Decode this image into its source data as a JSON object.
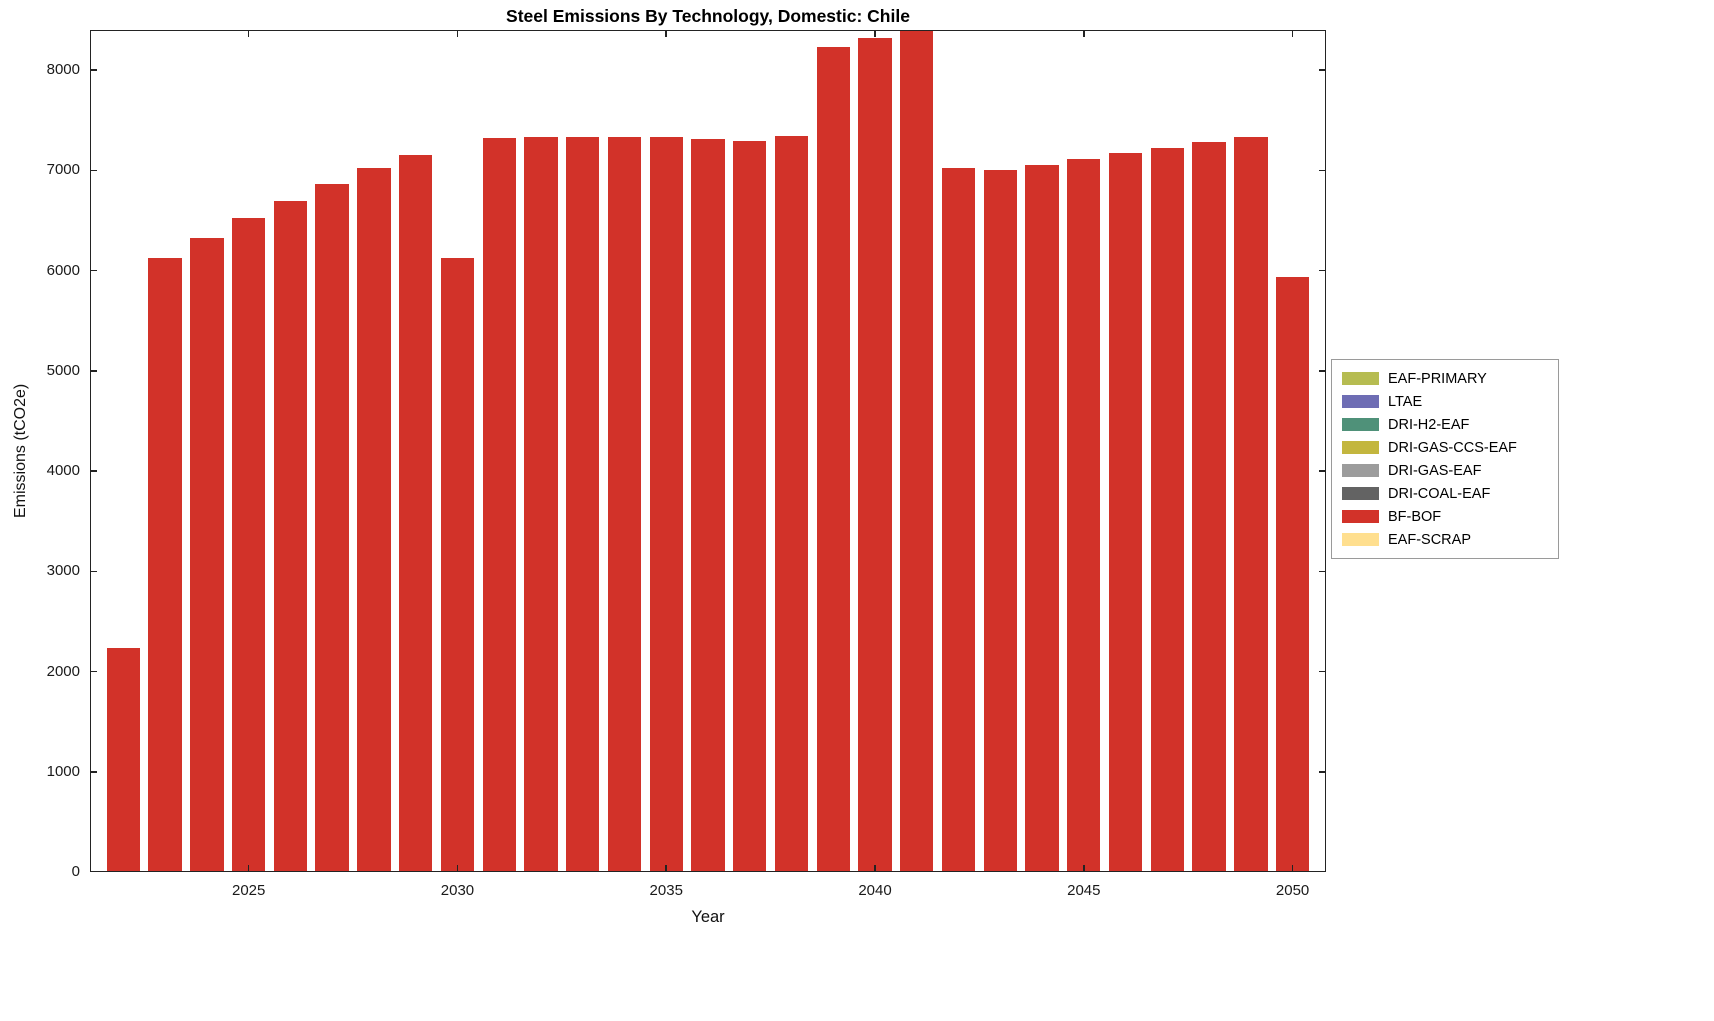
{
  "chart_data": {
    "type": "bar",
    "title": "Steel Emissions By Technology, Domestic: Chile",
    "xlabel": "Year",
    "ylabel": "Emissions (tCO2e)",
    "xlim": [
      2021.2,
      2050.8
    ],
    "ylim": [
      0,
      8400
    ],
    "yticks": [
      0,
      1000,
      2000,
      3000,
      4000,
      5000,
      6000,
      7000,
      8000
    ],
    "xticks": [
      2025,
      2030,
      2035,
      2040,
      2045,
      2050
    ],
    "grid": false,
    "bar_width": 0.8,
    "categories": [
      2022,
      2023,
      2024,
      2025,
      2026,
      2027,
      2028,
      2029,
      2030,
      2031,
      2032,
      2033,
      2034,
      2035,
      2036,
      2037,
      2038,
      2039,
      2040,
      2041,
      2042,
      2043,
      2044,
      2045,
      2046,
      2047,
      2048,
      2049,
      2050
    ],
    "series": [
      {
        "name": "BF-BOF",
        "color": "#d23229",
        "values": [
          2230,
          6130,
          6330,
          6520,
          6690,
          6860,
          7020,
          7150,
          6130,
          7320,
          7330,
          7330,
          7330,
          7330,
          7310,
          7290,
          7340,
          8230,
          8320,
          8420,
          7020,
          7000,
          7050,
          7110,
          7170,
          7220,
          7280,
          7330,
          5940
        ]
      }
    ],
    "legend_position": "right-outside",
    "legend": [
      {
        "label": "EAF-PRIMARY",
        "color": "#b6bc51"
      },
      {
        "label": "LTAE",
        "color": "#6e6db4"
      },
      {
        "label": "DRI-H2-EAF",
        "color": "#4f9179"
      },
      {
        "label": "DRI-GAS-CCS-EAF",
        "color": "#c3b63e"
      },
      {
        "label": "DRI-GAS-EAF",
        "color": "#9c9c9c"
      },
      {
        "label": "DRI-COAL-EAF",
        "color": "#636363"
      },
      {
        "label": "BF-BOF",
        "color": "#d23229"
      },
      {
        "label": "EAF-SCRAP",
        "color": "#ffdf8f"
      }
    ]
  }
}
